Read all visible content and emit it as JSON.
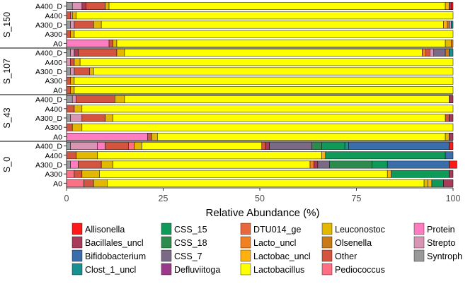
{
  "chart_data": {
    "type": "bar",
    "orientation": "horizontal",
    "stacked": true,
    "title": "",
    "xlabel": "Relative Abundance (%)",
    "ylabel": "",
    "xlim": [
      0,
      100
    ],
    "xticks": [
      0,
      25,
      50,
      75,
      100
    ],
    "legend_position": "bottom",
    "taxa": [
      {
        "name": "Allisonella",
        "color": "#ff1a1a"
      },
      {
        "name": "Bacillales_uncl",
        "color": "#a83a5a"
      },
      {
        "name": "Bifidobacterium",
        "color": "#3a6eaa"
      },
      {
        "name": "Clost_1_uncl",
        "color": "#17908f"
      },
      {
        "name": "CSS_15",
        "color": "#109a5a"
      },
      {
        "name": "CSS_18",
        "color": "#2e8b4e"
      },
      {
        "name": "CSS_7",
        "color": "#7a6a86"
      },
      {
        "name": "Defluviitoga",
        "color": "#9a3a8a"
      },
      {
        "name": "DTU014_ge",
        "color": "#e8673c"
      },
      {
        "name": "Lacto_uncl",
        "color": "#f08020"
      },
      {
        "name": "Lactobac_uncl",
        "color": "#ffb10f"
      },
      {
        "name": "Lactobacillus",
        "color": "#ffff00"
      },
      {
        "name": "Leuconostoc",
        "color": "#e2b800"
      },
      {
        "name": "Olsenella",
        "color": "#c97a1a"
      },
      {
        "name": "Other",
        "color": "#d4553f"
      },
      {
        "name": "Pediococcus",
        "color": "#ff6f86"
      },
      {
        "name": "Protein",
        "color": "#ff7cc0"
      },
      {
        "name": "Strepto",
        "color": "#d996b4"
      },
      {
        "name": "Syntroph",
        "color": "#9a9a9a"
      }
    ],
    "groups": [
      {
        "name": "S_150",
        "samples": [
          {
            "label": "A400_D",
            "segments": [
              {
                "taxon": "Syntroph",
                "value": 1.5
              },
              {
                "taxon": "Strepto",
                "value": 2.5
              },
              {
                "taxon": "Bacillales_uncl",
                "value": 1
              },
              {
                "taxon": "Other",
                "value": 5
              },
              {
                "taxon": "Leuconostoc",
                "value": 1
              },
              {
                "taxon": "Lactobacillus",
                "value": 87
              },
              {
                "taxon": "Lactobac_uncl",
                "value": 1
              },
              {
                "taxon": "Bacillales_uncl",
                "value": 0.5
              },
              {
                "taxon": "Allisonella",
                "value": 0.5
              }
            ]
          },
          {
            "label": "A400",
            "segments": [
              {
                "taxon": "Other",
                "value": 1
              },
              {
                "taxon": "Strepto",
                "value": 0.5
              },
              {
                "taxon": "Leuconostoc",
                "value": 1
              },
              {
                "taxon": "Lactobacillus",
                "value": 97.5
              }
            ]
          },
          {
            "label": "A300_D",
            "segments": [
              {
                "taxon": "Syntroph",
                "value": 1
              },
              {
                "taxon": "Strepto",
                "value": 1
              },
              {
                "taxon": "Other",
                "value": 5
              },
              {
                "taxon": "Leuconostoc",
                "value": 2
              },
              {
                "taxon": "Lactobacillus",
                "value": 88.5
              },
              {
                "taxon": "Lactobac_uncl",
                "value": 1
              },
              {
                "taxon": "Olsenella",
                "value": 0.5
              },
              {
                "taxon": "Strepto",
                "value": 0.5
              },
              {
                "taxon": "Clost_1_uncl",
                "value": 0.5
              }
            ]
          },
          {
            "label": "A300",
            "segments": [
              {
                "taxon": "Other",
                "value": 1
              },
              {
                "taxon": "Leuconostoc",
                "value": 1
              },
              {
                "taxon": "Lactobacillus",
                "value": 98
              }
            ]
          },
          {
            "label": "A0",
            "segments": [
              {
                "taxon": "Protein",
                "value": 11
              },
              {
                "taxon": "Other",
                "value": 1
              },
              {
                "taxon": "Leuconostoc",
                "value": 1
              },
              {
                "taxon": "Lactobacillus",
                "value": 85
              },
              {
                "taxon": "Leuconostoc",
                "value": 1.5
              },
              {
                "taxon": "Lacto_uncl",
                "value": 0.5
              }
            ]
          }
        ]
      },
      {
        "name": "S_107",
        "samples": [
          {
            "label": "A400_D",
            "segments": [
              {
                "taxon": "Syntroph",
                "value": 1
              },
              {
                "taxon": "Strepto",
                "value": 1
              },
              {
                "taxon": "Bacillales_uncl",
                "value": 1
              },
              {
                "taxon": "Other",
                "value": 10
              },
              {
                "taxon": "Leuconostoc",
                "value": 2
              },
              {
                "taxon": "Lactobacillus",
                "value": 77
              },
              {
                "taxon": "Lacto_uncl",
                "value": 1
              },
              {
                "taxon": "Other",
                "value": 1
              },
              {
                "taxon": "Strepto",
                "value": 1
              },
              {
                "taxon": "CSS_7",
                "value": 3
              },
              {
                "taxon": "Olsenella",
                "value": 1
              },
              {
                "taxon": "Clost_1_uncl",
                "value": 1
              }
            ]
          },
          {
            "label": "A400",
            "segments": [
              {
                "taxon": "Strepto",
                "value": 1
              },
              {
                "taxon": "Other",
                "value": 1
              },
              {
                "taxon": "Leuconostoc",
                "value": 1.5
              },
              {
                "taxon": "Lactobacillus",
                "value": 96.5
              }
            ]
          },
          {
            "label": "A300_D",
            "segments": [
              {
                "taxon": "Syntroph",
                "value": 1
              },
              {
                "taxon": "Strepto",
                "value": 1
              },
              {
                "taxon": "Other",
                "value": 4
              },
              {
                "taxon": "Leuconostoc",
                "value": 1
              },
              {
                "taxon": "Lactobacillus",
                "value": 93
              }
            ]
          },
          {
            "label": "A300",
            "segments": [
              {
                "taxon": "Other",
                "value": 1
              },
              {
                "taxon": "Leuconostoc",
                "value": 1
              },
              {
                "taxon": "Lactobacillus",
                "value": 98
              }
            ]
          },
          {
            "label": "A0",
            "segments": [
              {
                "taxon": "Other",
                "value": 1
              },
              {
                "taxon": "Leuconostoc",
                "value": 1
              },
              {
                "taxon": "Lactobacillus",
                "value": 98
              }
            ]
          }
        ]
      },
      {
        "name": "S_43",
        "samples": [
          {
            "label": "A400_D",
            "segments": [
              {
                "taxon": "Syntroph",
                "value": 1.5
              },
              {
                "taxon": "Strepto",
                "value": 1
              },
              {
                "taxon": "Other",
                "value": 10
              },
              {
                "taxon": "Leuconostoc",
                "value": 2.5
              },
              {
                "taxon": "Lactobacillus",
                "value": 84
              },
              {
                "taxon": "Bacillales_uncl",
                "value": 1
              }
            ]
          },
          {
            "label": "A400",
            "segments": [
              {
                "taxon": "Other",
                "value": 2
              },
              {
                "taxon": "Leuconostoc",
                "value": 2
              },
              {
                "taxon": "Lactobacillus",
                "value": 96
              }
            ]
          },
          {
            "label": "A300_D",
            "segments": [
              {
                "taxon": "Syntroph",
                "value": 1
              },
              {
                "taxon": "Strepto",
                "value": 3
              },
              {
                "taxon": "Other",
                "value": 6
              },
              {
                "taxon": "Leuconostoc",
                "value": 2
              },
              {
                "taxon": "Lactobacillus",
                "value": 86
              },
              {
                "taxon": "Other",
                "value": 1
              },
              {
                "taxon": "Bacillales_uncl",
                "value": 1
              }
            ]
          },
          {
            "label": "A300",
            "segments": [
              {
                "taxon": "Other",
                "value": 1.5
              },
              {
                "taxon": "Leuconostoc",
                "value": 2.5
              },
              {
                "taxon": "Lactobacillus",
                "value": 96
              }
            ]
          },
          {
            "label": "A0",
            "segments": [
              {
                "taxon": "Protein",
                "value": 21
              },
              {
                "taxon": "Other",
                "value": 1
              },
              {
                "taxon": "Leuconostoc",
                "value": 1.5
              },
              {
                "taxon": "Lactobacillus",
                "value": 74.5
              },
              {
                "taxon": "Leuconostoc",
                "value": 1
              },
              {
                "taxon": "Bacillales_uncl",
                "value": 1
              }
            ]
          }
        ]
      },
      {
        "name": "S_0",
        "samples": [
          {
            "label": "A400_D",
            "segments": [
              {
                "taxon": "Syntroph",
                "value": 1
              },
              {
                "taxon": "Strepto",
                "value": 7
              },
              {
                "taxon": "Protein",
                "value": 2
              },
              {
                "taxon": "Other",
                "value": 6
              },
              {
                "taxon": "Pediococcus",
                "value": 1.5
              },
              {
                "taxon": "Leuconostoc",
                "value": 2
              },
              {
                "taxon": "Lactobacillus",
                "value": 31
              },
              {
                "taxon": "Other",
                "value": 1
              },
              {
                "taxon": "Bacillales_uncl",
                "value": 1
              },
              {
                "taxon": "CSS_7",
                "value": 11
              },
              {
                "taxon": "CSS_18",
                "value": 2.5
              },
              {
                "taxon": "CSS_15",
                "value": 6
              },
              {
                "taxon": "Clost_1_uncl",
                "value": 1
              },
              {
                "taxon": "Bifidobacterium",
                "value": 26
              },
              {
                "taxon": "Allisonella",
                "value": 1
              }
            ]
          },
          {
            "label": "A400",
            "segments": [
              {
                "taxon": "Other",
                "value": 2.5
              },
              {
                "taxon": "Leuconostoc",
                "value": 5.5
              },
              {
                "taxon": "Lactobacillus",
                "value": 58
              },
              {
                "taxon": "Lactobac_uncl",
                "value": 1
              },
              {
                "taxon": "CSS_15",
                "value": 31
              },
              {
                "taxon": "Bifidobacterium",
                "value": 2
              }
            ]
          },
          {
            "label": "A300_D",
            "segments": [
              {
                "taxon": "Syntroph",
                "value": 1
              },
              {
                "taxon": "Protein",
                "value": 2
              },
              {
                "taxon": "Other",
                "value": 6
              },
              {
                "taxon": "Leuconostoc",
                "value": 3
              },
              {
                "taxon": "Lactobacillus",
                "value": 51
              },
              {
                "taxon": "Lacto_uncl",
                "value": 1
              },
              {
                "taxon": "Bacillales_uncl",
                "value": 1
              },
              {
                "taxon": "CSS_7",
                "value": 3
              },
              {
                "taxon": "CSS_18",
                "value": 11
              },
              {
                "taxon": "CSS_15",
                "value": 4
              },
              {
                "taxon": "Bifidobacterium",
                "value": 16
              },
              {
                "taxon": "Allisonella",
                "value": 2
              }
            ]
          },
          {
            "label": "A300",
            "segments": [
              {
                "taxon": "Pediococcus",
                "value": 2
              },
              {
                "taxon": "Other",
                "value": 2
              },
              {
                "taxon": "Leuconostoc",
                "value": 4.5
              },
              {
                "taxon": "Lactobacillus",
                "value": 74.5
              },
              {
                "taxon": "Lactobac_uncl",
                "value": 1
              },
              {
                "taxon": "CSS_15",
                "value": 15
              },
              {
                "taxon": "Bacillales_uncl",
                "value": 1
              }
            ]
          },
          {
            "label": "A0",
            "segments": [
              {
                "taxon": "Pediococcus",
                "value": 4.5
              },
              {
                "taxon": "Other",
                "value": 2.5
              },
              {
                "taxon": "Leuconostoc",
                "value": 3.5
              },
              {
                "taxon": "Lactobacillus",
                "value": 82
              },
              {
                "taxon": "Leuconostoc",
                "value": 1
              },
              {
                "taxon": "Lactobac_uncl",
                "value": 1
              },
              {
                "taxon": "CSS_15",
                "value": 3
              },
              {
                "taxon": "Bacillales_uncl",
                "value": 2.5
              }
            ]
          }
        ]
      }
    ]
  }
}
